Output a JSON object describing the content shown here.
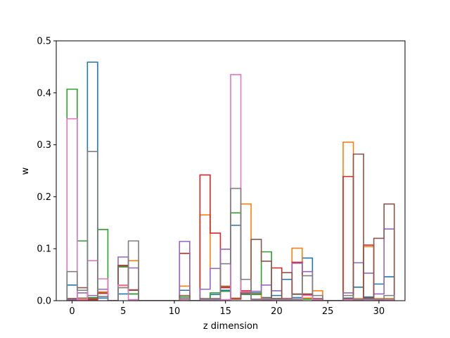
{
  "chart_data": {
    "type": "step",
    "title": "",
    "xlabel": "z dimension",
    "ylabel": "w",
    "xlim": [
      -1.55,
      32.55
    ],
    "ylim": [
      0,
      0.5
    ],
    "xticks": [
      0,
      5,
      10,
      15,
      20,
      25,
      30
    ],
    "yticks": [
      0.0,
      0.1,
      0.2,
      0.3,
      0.4,
      0.5
    ],
    "xtick_labels": [
      "0",
      "5",
      "10",
      "15",
      "20",
      "25",
      "30"
    ],
    "ytick_labels": [
      "0.0",
      "0.1",
      "0.2",
      "0.3",
      "0.4",
      "0.5"
    ],
    "grid": false,
    "x": [
      0,
      1,
      2,
      3,
      4,
      5,
      6,
      7,
      8,
      9,
      10,
      11,
      12,
      13,
      14,
      15,
      16,
      17,
      18,
      19,
      20,
      21,
      22,
      23,
      24,
      25,
      26,
      27,
      28,
      29,
      30,
      31
    ],
    "series": [
      {
        "color": "#1f77b4",
        "values": [
          0.03,
          0.005,
          0.459,
          0.005,
          0,
          0.013,
          0.013,
          0,
          0,
          0,
          0,
          0.02,
          0,
          0.003,
          0.012,
          0.02,
          0.145,
          0.013,
          0.015,
          0.006,
          0.01,
          0.041,
          0.006,
          0.082,
          0.003,
          0,
          0,
          0.005,
          0.026,
          0.007,
          0.032,
          0.046
        ]
      },
      {
        "color": "#ff7f0e",
        "values": [
          0.004,
          0.004,
          0.004,
          0.017,
          0,
          0.029,
          0.077,
          0,
          0,
          0,
          0,
          0.028,
          0,
          0.165,
          0.062,
          0.028,
          0.005,
          0.186,
          0.013,
          0.004,
          0.004,
          0.003,
          0.101,
          0.005,
          0.019,
          0,
          0,
          0.305,
          0.004,
          0.104,
          0.004,
          0.004
        ]
      },
      {
        "color": "#2ca02c",
        "values": [
          0.407,
          0.115,
          0.006,
          0.137,
          0,
          0.065,
          0.013,
          0,
          0,
          0,
          0,
          0.007,
          0,
          0.003,
          0.015,
          0.018,
          0.169,
          0.012,
          0.012,
          0.094,
          0.004,
          0.003,
          0.003,
          0.003,
          0.003,
          0,
          0,
          0.003,
          0.003,
          0.003,
          0.003,
          0.003
        ]
      },
      {
        "color": "#d62728",
        "values": [
          0.002,
          0.002,
          0.002,
          0.014,
          0,
          0.067,
          0.02,
          0,
          0,
          0,
          0,
          0.091,
          0,
          0.242,
          0.13,
          0.025,
          0.003,
          0.019,
          0.003,
          0.002,
          0.063,
          0.004,
          0.074,
          0.012,
          0.002,
          0,
          0,
          0.239,
          0.002,
          0.107,
          0.002,
          0.002
        ]
      },
      {
        "color": "#9467bd",
        "values": [
          0.002,
          0.015,
          0.01,
          0.022,
          0,
          0.084,
          0.063,
          0,
          0,
          0,
          0,
          0.114,
          0,
          0.022,
          0.062,
          0.099,
          0.004,
          0.014,
          0.018,
          0.03,
          0.019,
          0.003,
          0.072,
          0.056,
          0.002,
          0,
          0,
          0.015,
          0.073,
          0.053,
          0.013,
          0.138
        ]
      },
      {
        "color": "#8c564b",
        "values": [
          0.004,
          0.025,
          0.004,
          0.015,
          0,
          0.068,
          0.021,
          0,
          0,
          0,
          0,
          0.01,
          0,
          0.004,
          0.004,
          0.027,
          0.004,
          0.015,
          0.118,
          0.076,
          0.004,
          0.054,
          0.013,
          0.013,
          0.004,
          0,
          0,
          0.004,
          0.282,
          0.005,
          0.12,
          0.186
        ]
      },
      {
        "color": "#e377c2",
        "values": [
          0.35,
          0.002,
          0.077,
          0.042,
          0,
          0.03,
          0.002,
          0,
          0,
          0,
          0,
          0.002,
          0,
          0.002,
          0.002,
          0.002,
          0.435,
          0.017,
          0.002,
          0.002,
          0.002,
          0.002,
          0.002,
          0.01,
          0.002,
          0,
          0,
          0.002,
          0.002,
          0.002,
          0.002,
          0.002
        ]
      },
      {
        "color": "#7f7f7f",
        "values": [
          0.056,
          0.02,
          0.287,
          0.008,
          0,
          0.025,
          0.115,
          0,
          0,
          0,
          0,
          0.004,
          0,
          0.003,
          0.003,
          0.071,
          0.216,
          0.041,
          0.003,
          0.003,
          0.003,
          0.003,
          0.012,
          0.048,
          0.01,
          0,
          0,
          0.01,
          0.003,
          0.003,
          0.003,
          0.01
        ]
      }
    ]
  }
}
